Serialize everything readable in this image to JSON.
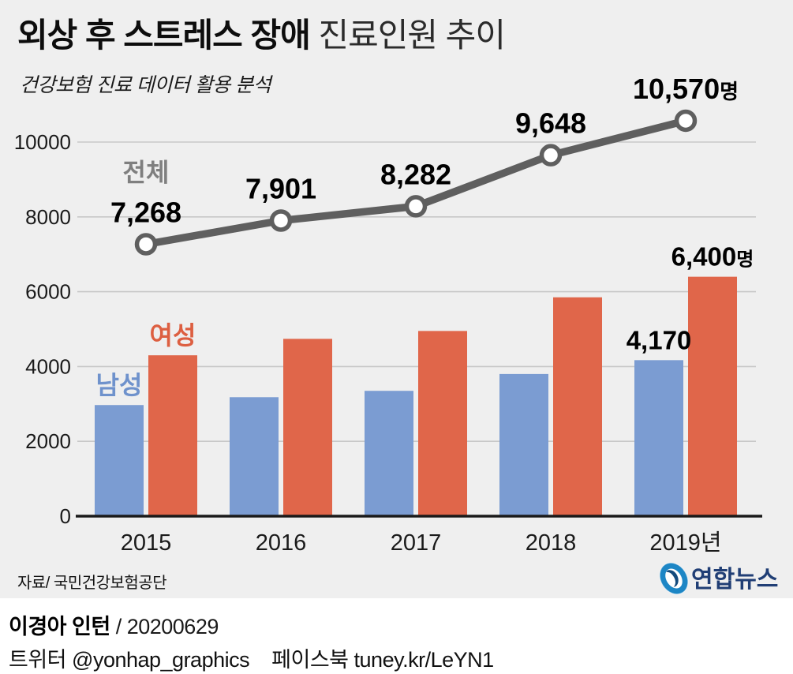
{
  "header": {
    "title_bold": "외상 후 스트레스 장애",
    "title_regular": " 진료인원 추이",
    "subtitle": "건강보험 진료 데이터 활용 분석"
  },
  "chart_data": {
    "type": "bar+line combo",
    "title": "외상 후 스트레스 장애 진료인원 추이",
    "subtitle": "건강보험 진료 데이터 활용 분석",
    "categories": [
      "2015",
      "2016",
      "2017",
      "2018",
      "2019년"
    ],
    "unit_suffix": "명",
    "ylim": [
      0,
      11000
    ],
    "yticks": [
      0,
      2000,
      4000,
      6000,
      8000,
      10000
    ],
    "grid": true,
    "legend_position": "inline-annotations",
    "series": [
      {
        "name": "전체",
        "type": "line",
        "color": "#5f5f5f",
        "marker": "open-circle",
        "values": [
          7268,
          7901,
          8282,
          9648,
          10570
        ],
        "point_labels": [
          "7,268",
          "7,901",
          "8,282",
          "9,648",
          "10,570명"
        ]
      },
      {
        "name": "남성",
        "type": "bar",
        "color": "#7b9cd2",
        "label_color": "#6f92cc",
        "values": [
          2970,
          3180,
          3350,
          3800,
          4170
        ],
        "point_labels": [
          null,
          null,
          null,
          null,
          "4,170"
        ]
      },
      {
        "name": "여성",
        "type": "bar",
        "color": "#e0664a",
        "label_color": "#dd5f41",
        "values": [
          4300,
          4740,
          4950,
          5850,
          6400
        ],
        "point_labels": [
          null,
          null,
          null,
          null,
          "6,400명"
        ]
      }
    ],
    "colors": {
      "grid": "#c8c8c8",
      "axis": "#1a1a1a",
      "tick_label": "#1a1a1a",
      "value_label": "#000000",
      "total_label": "#7f7f7f"
    }
  },
  "source": "자료/ 국민건강보험공단",
  "logo": {
    "text": "연합뉴스",
    "icon_color": "#1d86c5",
    "text_color": "#203e75"
  },
  "footer": {
    "byline_name": "이경아 인턴",
    "byline_date": "/ 20200629",
    "twitter_label": "트위터",
    "twitter_handle": "@yonhap_graphics",
    "facebook_label": "페이스북",
    "facebook_url": "tuney.kr/LeYN1"
  }
}
